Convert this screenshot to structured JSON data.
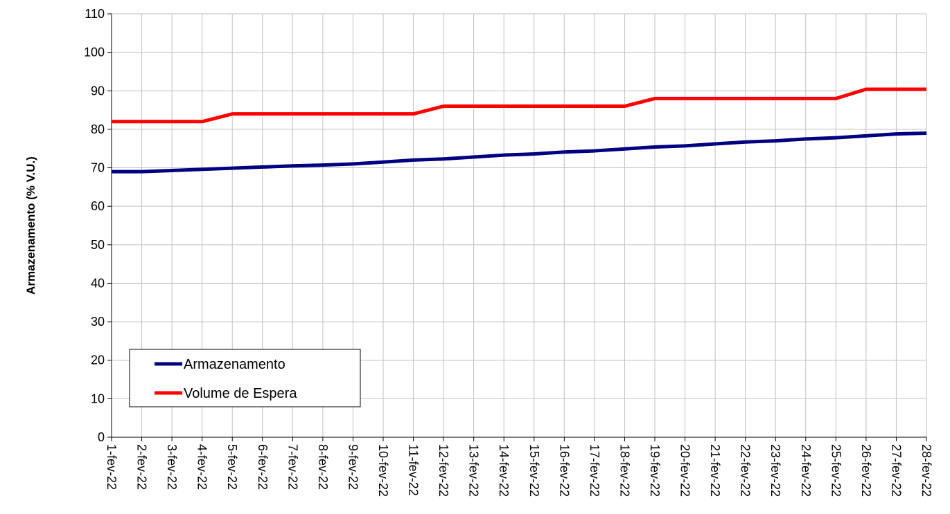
{
  "chart_data": {
    "type": "line",
    "ylabel": "Armazenamento (% V.U.)",
    "categories": [
      "1-fev-22",
      "2-fev-22",
      "3-fev-22",
      "4-fev-22",
      "5-fev-22",
      "6-fev-22",
      "7-fev-22",
      "8-fev-22",
      "9-fev-22",
      "10-fev-22",
      "11-fev-22",
      "12-fev-22",
      "13-fev-22",
      "14-fev-22",
      "15-fev-22",
      "16-fev-22",
      "17-fev-22",
      "18-fev-22",
      "19-fev-22",
      "20-fev-22",
      "21-fev-22",
      "22-fev-22",
      "23-fev-22",
      "24-fev-22",
      "25-fev-22",
      "26-fev-22",
      "27-fev-22",
      "28-fev-22"
    ],
    "series": [
      {
        "name": "Armazenamento",
        "color": "#000080",
        "values": [
          69.0,
          69.0,
          69.3,
          69.6,
          69.9,
          70.2,
          70.5,
          70.7,
          71.0,
          71.5,
          72.0,
          72.3,
          72.8,
          73.3,
          73.6,
          74.1,
          74.4,
          74.9,
          75.4,
          75.7,
          76.2,
          76.7,
          77.0,
          77.5,
          77.8,
          78.3,
          78.8,
          79.0
        ]
      },
      {
        "name": "Volume de Espera",
        "color": "#ff0000",
        "values": [
          82,
          82,
          82,
          82,
          84,
          84,
          84,
          84,
          84,
          84,
          84,
          86,
          86,
          86,
          86,
          86,
          86,
          86,
          88,
          88,
          88,
          88,
          88,
          88,
          88,
          90.4,
          90.4,
          90.4
        ]
      }
    ],
    "ylim": [
      0,
      110
    ],
    "yticks": [
      0,
      10,
      20,
      30,
      40,
      50,
      60,
      70,
      80,
      90,
      100,
      110
    ],
    "grid": true,
    "legend": "lower left"
  }
}
